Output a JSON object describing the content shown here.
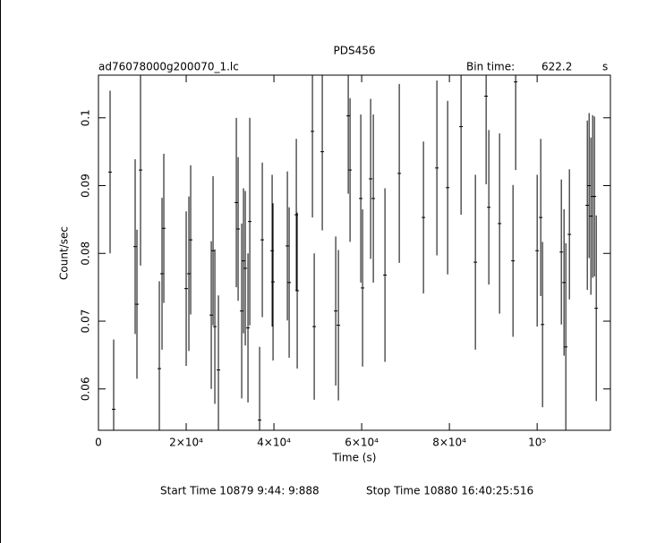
{
  "chart_data": {
    "type": "errorbar",
    "title": "PDS456",
    "subtitle": "ad76078000g200070_1.lc",
    "bin_time_label": "Bin time:",
    "bin_time": 622.2,
    "bin_time_unit": "s",
    "x_label": "Time (s)",
    "y_label": "Count/sec",
    "footer_start": "Start Time 10879  9:44: 9:888",
    "footer_stop": "Stop Time 10880 16:40:25:516",
    "color": "#000000",
    "xlim": [
      0,
      116700
    ],
    "ylim": [
      0.0539,
      0.1063
    ],
    "xticks": [
      0,
      {
        "value": 20000,
        "label": "2×10⁴"
      },
      {
        "value": 40000,
        "label": "4×10⁴"
      },
      {
        "value": 60000,
        "label": "6×10⁴"
      },
      {
        "value": 80000,
        "label": "8×10⁴"
      },
      {
        "value": 100000,
        "label": "10⁵"
      }
    ],
    "yticks": [
      0.06,
      0.07,
      0.08,
      0.09,
      0.1
    ],
    "x": [
      2653,
      3469,
      8367,
      8776,
      9592,
      13878,
      14490,
      14898,
      20000,
      20612,
      21020,
      25714,
      26122,
      26531,
      27347,
      31429,
      31837,
      32653,
      33061,
      33469,
      34082,
      34490,
      36735,
      37347,
      39592,
      39796,
      43061,
      43469,
      45102,
      45306,
      48776,
      49184,
      51020,
      54082,
      54694,
      56939,
      57347,
      59796,
      60204,
      62041,
      62653,
      65306,
      68571,
      74082,
      77143,
      79592,
      82653,
      85918,
      88367,
      88980,
      91429,
      94490,
      95102,
      100000,
      100816,
      101224,
      105510,
      106122,
      106531,
      107347,
      111429,
      111837,
      112245,
      112653,
      113061,
      113469
    ],
    "values": [
      0.092,
      0.057,
      0.081,
      0.0725,
      0.0923,
      0.063,
      0.077,
      0.0837,
      0.0748,
      0.077,
      0.082,
      0.0709,
      0.0804,
      0.0692,
      0.0628,
      0.0875,
      0.0836,
      0.0715,
      0.0789,
      0.0778,
      0.069,
      0.0847,
      0.0554,
      0.082,
      0.0804,
      0.0758,
      0.0811,
      0.0757,
      0.0857,
      0.0745,
      0.098,
      0.0692,
      0.095,
      0.0715,
      0.0694,
      0.1003,
      0.0923,
      0.0881,
      0.0749,
      0.091,
      0.0881,
      0.0768,
      0.0918,
      0.0853,
      0.0926,
      0.0897,
      0.0987,
      0.0787,
      0.1032,
      0.0868,
      0.0844,
      0.0789,
      0.1053,
      0.0804,
      0.0853,
      0.0695,
      0.0802,
      0.0757,
      0.0662,
      0.0828,
      0.0871,
      0.09,
      0.0855,
      0.0884,
      0.0884,
      0.0719
    ],
    "errors": [
      0.012,
      0.0103,
      0.0129,
      0.011,
      0.0141,
      0.0129,
      0.0112,
      0.011,
      0.0114,
      0.0114,
      0.011,
      0.0109,
      0.011,
      0.0114,
      0.011,
      0.0125,
      0.0106,
      0.0129,
      0.0107,
      0.0114,
      0.011,
      0.0153,
      0.0108,
      0.0114,
      0.0112,
      0.0116,
      0.011,
      0.0111,
      0.0112,
      0.0115,
      0.0127,
      0.0108,
      0.0116,
      0.011,
      0.0111,
      0.0115,
      0.0106,
      0.0124,
      0.0116,
      0.0118,
      0.0124,
      0.0128,
      0.0132,
      0.0112,
      0.0129,
      0.0128,
      0.013,
      0.0129,
      0.013,
      0.0114,
      0.0133,
      0.0112,
      0.013,
      0.0112,
      0.0116,
      0.0122,
      0.0107,
      0.0108,
      0.0153,
      0.0096,
      0.0125,
      0.0107,
      0.0116,
      0.012,
      0.0118,
      0.0137
    ]
  }
}
